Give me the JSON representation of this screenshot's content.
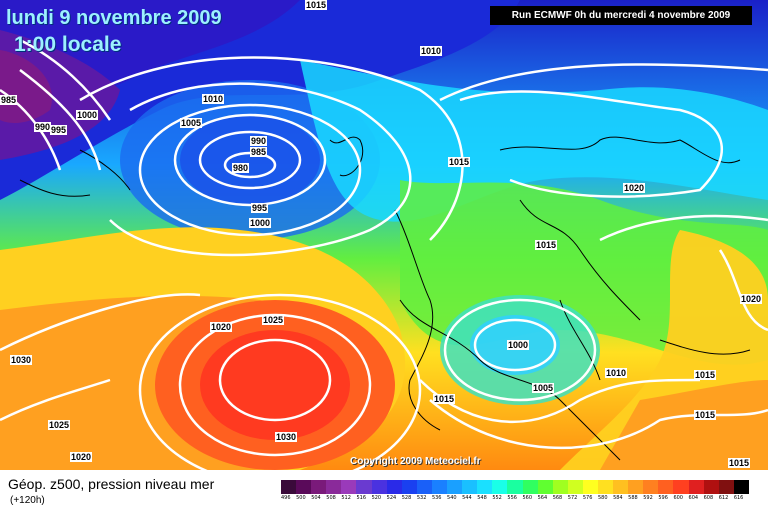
{
  "header": {
    "date": "lundi 9 novembre 2009",
    "time": "1:00 locale",
    "run": "Run ECMWF 0h du mercredi 4 novembre 2009"
  },
  "copyright": "Copyright 2009 Meteociel.fr",
  "footer": {
    "variable": "Géop. z500, pression niveau mer",
    "lead": "(+120h)"
  },
  "isobars": [
    {
      "label": "1015"
    },
    {
      "label": "1010"
    },
    {
      "label": "985"
    },
    {
      "label": "1000"
    },
    {
      "label": "995"
    },
    {
      "label": "990"
    },
    {
      "label": "1010"
    },
    {
      "label": "1005"
    },
    {
      "label": "990"
    },
    {
      "label": "985"
    },
    {
      "label": "980"
    },
    {
      "label": "995"
    },
    {
      "label": "1000"
    },
    {
      "label": "1015"
    },
    {
      "label": "1020"
    },
    {
      "label": "1015"
    },
    {
      "label": "1020"
    },
    {
      "label": "1025"
    },
    {
      "label": "1020"
    },
    {
      "label": "1030"
    },
    {
      "label": "1000"
    },
    {
      "label": "1005"
    },
    {
      "label": "1010"
    },
    {
      "label": "1015"
    },
    {
      "label": "1015"
    },
    {
      "label": "1015"
    },
    {
      "label": "1025"
    },
    {
      "label": "1030"
    },
    {
      "label": "1020"
    },
    {
      "label": "1015"
    }
  ],
  "scale": {
    "labels": [
      "496",
      "500",
      "504",
      "508",
      "512",
      "516",
      "520",
      "524",
      "528",
      "532",
      "536",
      "540",
      "544",
      "548",
      "552",
      "556",
      "560",
      "564",
      "568",
      "572",
      "576",
      "580",
      "584",
      "588",
      "592",
      "596",
      "600",
      "604",
      "608",
      "612",
      "616"
    ],
    "colors": [
      "#3a0a3a",
      "#5a0a5a",
      "#7a1a7a",
      "#8a2a9a",
      "#9a3aba",
      "#6a3ad0",
      "#4a32e0",
      "#2a2ae8",
      "#1a40f0",
      "#1a60f8",
      "#1a80ff",
      "#1aa0ff",
      "#1ac0ff",
      "#1ae0ff",
      "#1affe8",
      "#1affa0",
      "#30ff60",
      "#60ff30",
      "#a0ff20",
      "#d0ff20",
      "#ffff20",
      "#ffe020",
      "#ffc020",
      "#ffa020",
      "#ff8020",
      "#ff6020",
      "#ff4020",
      "#e02020",
      "#b01010",
      "#801010",
      "#000000"
    ]
  }
}
